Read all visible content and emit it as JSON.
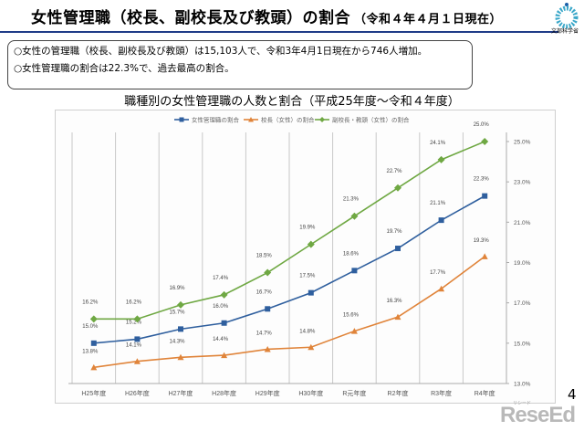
{
  "header": {
    "title": "女性管理職（校長、副校長及び教頭）の割合",
    "subtitle": "（令和４年４月１日現在）",
    "logo_text": "文部科学省",
    "logo_icon": "mext-emblem-icon"
  },
  "summary": {
    "lines": [
      "○女性の管理職（校長、副校長及び教頭）は15,103人で、令和3年4月1日現在から746人増加。",
      "○女性管理職の割合は22.3%で、過去最高の割合。"
    ]
  },
  "footer": {
    "page_number": "4",
    "watermark": "ReseEd",
    "watermark_kana": "リシード"
  },
  "colors": {
    "series_blue": "#2f5f9e",
    "series_orange": "#e0843a",
    "series_green": "#6fa843",
    "title_rule": "#1f3c88"
  },
  "chart_data": {
    "type": "line",
    "title": "職種別の女性管理職の人数と割合（平成25年度～令和４年度）",
    "xlabel": "",
    "ylabel": "",
    "categories": [
      "H25年度",
      "H26年度",
      "H27年度",
      "H28年度",
      "H29年度",
      "H30年度",
      "R元年度",
      "R2年度",
      "R3年度",
      "R4年度"
    ],
    "ylim": [
      13.0,
      25.0
    ],
    "yticks": [
      "13.0%",
      "15.0%",
      "17.0%",
      "19.0%",
      "21.0%",
      "23.0%",
      "25.0%"
    ],
    "y_axis_side": "right",
    "grid": "vertical category separators",
    "legend_position": "top",
    "series": [
      {
        "name": "女性管理職の割合",
        "marker": "square",
        "color": "#2f5f9e",
        "values": [
          15.0,
          15.2,
          15.7,
          16.0,
          16.7,
          17.5,
          18.6,
          19.7,
          21.1,
          22.3
        ],
        "labels": [
          "15.0%",
          "15.2%",
          "15.7%",
          "16.0%",
          "16.7%",
          "17.5%",
          "18.6%",
          "19.7%",
          "21.1%",
          "22.3%"
        ]
      },
      {
        "name": "校長（女性）の割合",
        "marker": "triangle",
        "color": "#e0843a",
        "values": [
          13.8,
          14.1,
          14.3,
          14.4,
          14.7,
          14.8,
          15.6,
          16.3,
          17.7,
          19.3
        ],
        "labels": [
          "13.8%",
          "14.1%",
          "14.3%",
          "14.4%",
          "14.7%",
          "14.8%",
          "15.6%",
          "16.3%",
          "17.7%",
          "19.3%"
        ]
      },
      {
        "name": "副校長・教頭（女性）の割合",
        "marker": "diamond",
        "color": "#6fa843",
        "values": [
          16.2,
          16.2,
          16.9,
          17.4,
          18.5,
          19.9,
          21.3,
          22.7,
          24.1,
          25.0
        ],
        "labels": [
          "16.2%",
          "16.2%",
          "16.9%",
          "17.4%",
          "18.5%",
          "19.9%",
          "21.3%",
          "22.7%",
          "24.1%",
          "25.0%"
        ]
      }
    ]
  }
}
